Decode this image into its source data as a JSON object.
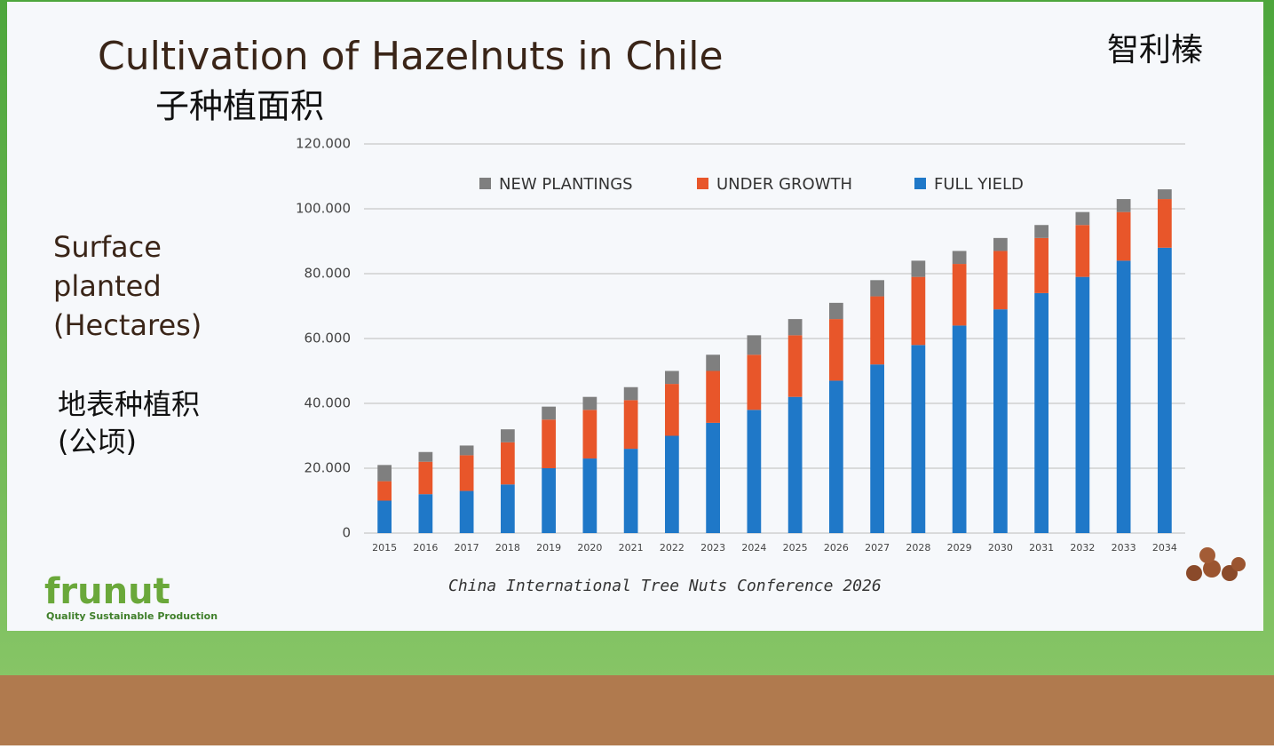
{
  "chart_data": {
    "type": "stacked_bar",
    "title": "Cultivation of Hazelnuts in Chile",
    "subtitle": "子种植面积",
    "corner_title": "智利榛",
    "y_label_lines": [
      "Surface",
      "planted",
      "(Hectares)"
    ],
    "y_label_cn_lines": [
      "地表种植积",
      "(公顷)"
    ],
    "footer": "China International Tree Nuts Conference 2026",
    "logo": "frunut",
    "logo_tagline": "Quality Sustainable Production",
    "categories": [
      "2015",
      "2016",
      "2017",
      "2018",
      "2019",
      "2020",
      "2021",
      "2022",
      "2023",
      "2024",
      "2025",
      "2026",
      "2027",
      "2028",
      "2029",
      "2030",
      "2031",
      "2032",
      "2033",
      "2034"
    ],
    "series": [
      {
        "name": "NEW PLANTINGS",
        "color": "#7f7f7f",
        "values": [
          5000,
          3000,
          3000,
          4000,
          4000,
          4000,
          4000,
          4000,
          5000,
          6000,
          5000,
          5000,
          5000,
          5000,
          4000,
          4000,
          4000,
          4000,
          4000,
          3000
        ]
      },
      {
        "name": "UNDER GROWTH",
        "color": "#e8562a",
        "values": [
          6000,
          10000,
          11000,
          13000,
          15000,
          15000,
          15000,
          16000,
          16000,
          17000,
          19000,
          19000,
          21000,
          21000,
          19000,
          18000,
          17000,
          16000,
          15000,
          15000
        ]
      },
      {
        "name": "FULL YIELD",
        "color": "#1f78c8",
        "values": [
          10000,
          12000,
          13000,
          15000,
          20000,
          23000,
          26000,
          30000,
          34000,
          38000,
          42000,
          47000,
          52000,
          58000,
          64000,
          69000,
          74000,
          79000,
          84000,
          88000
        ]
      }
    ],
    "ylim": [
      0,
      120000
    ],
    "yticks": [
      0,
      {
        "value": 20000,
        "label": "20.000"
      },
      {
        "value": 40000,
        "label": "40.000"
      },
      {
        "value": 60000,
        "label": "60.000"
      },
      {
        "value": 80000,
        "label": "80.000"
      },
      {
        "value": 100000,
        "label": "100.000"
      },
      {
        "value": 120000,
        "label": "120.000"
      }
    ],
    "grid": true
  }
}
